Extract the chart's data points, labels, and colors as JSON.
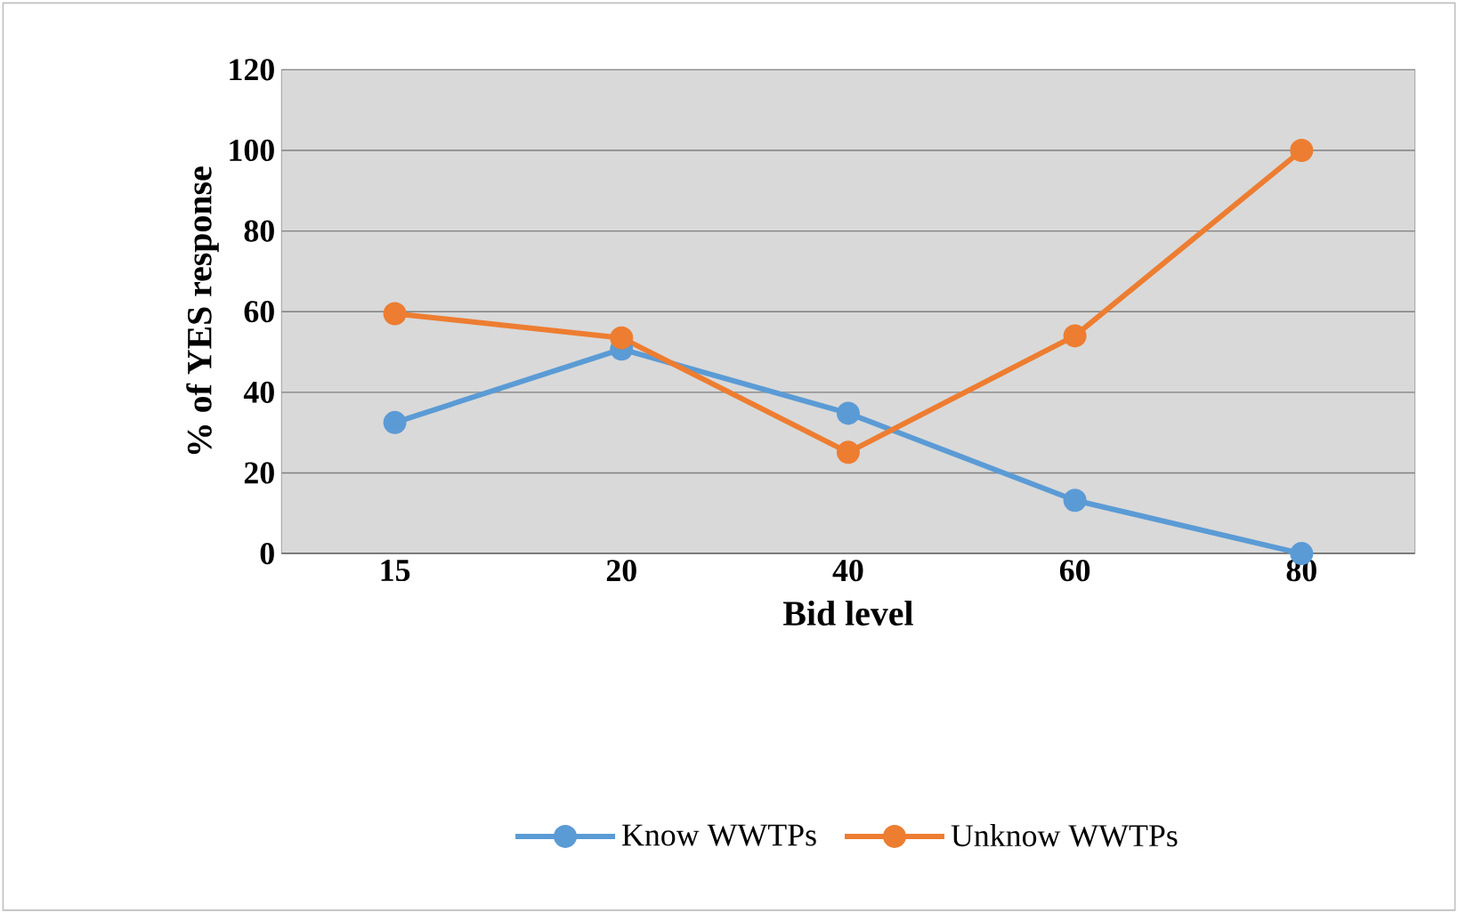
{
  "chart_data": {
    "type": "line",
    "xlabel": "Bid level",
    "ylabel": "% of YES response",
    "categories": [
      "15",
      "20",
      "40",
      "60",
      "80"
    ],
    "series": [
      {
        "name": "Know WWTPs",
        "color": "#5b9bd5",
        "values": [
          32.5,
          50.7,
          34.8,
          13.2,
          0
        ]
      },
      {
        "name": "Unknow WWTPs",
        "color": "#ed7d31",
        "values": [
          59.5,
          53.5,
          25.1,
          54,
          100
        ]
      }
    ],
    "ylim": [
      0,
      120
    ],
    "yticks": [
      0,
      20,
      40,
      60,
      80,
      100,
      120
    ],
    "grid": "y",
    "legend": "bottom",
    "marker": "circle",
    "line_style": "solid"
  }
}
